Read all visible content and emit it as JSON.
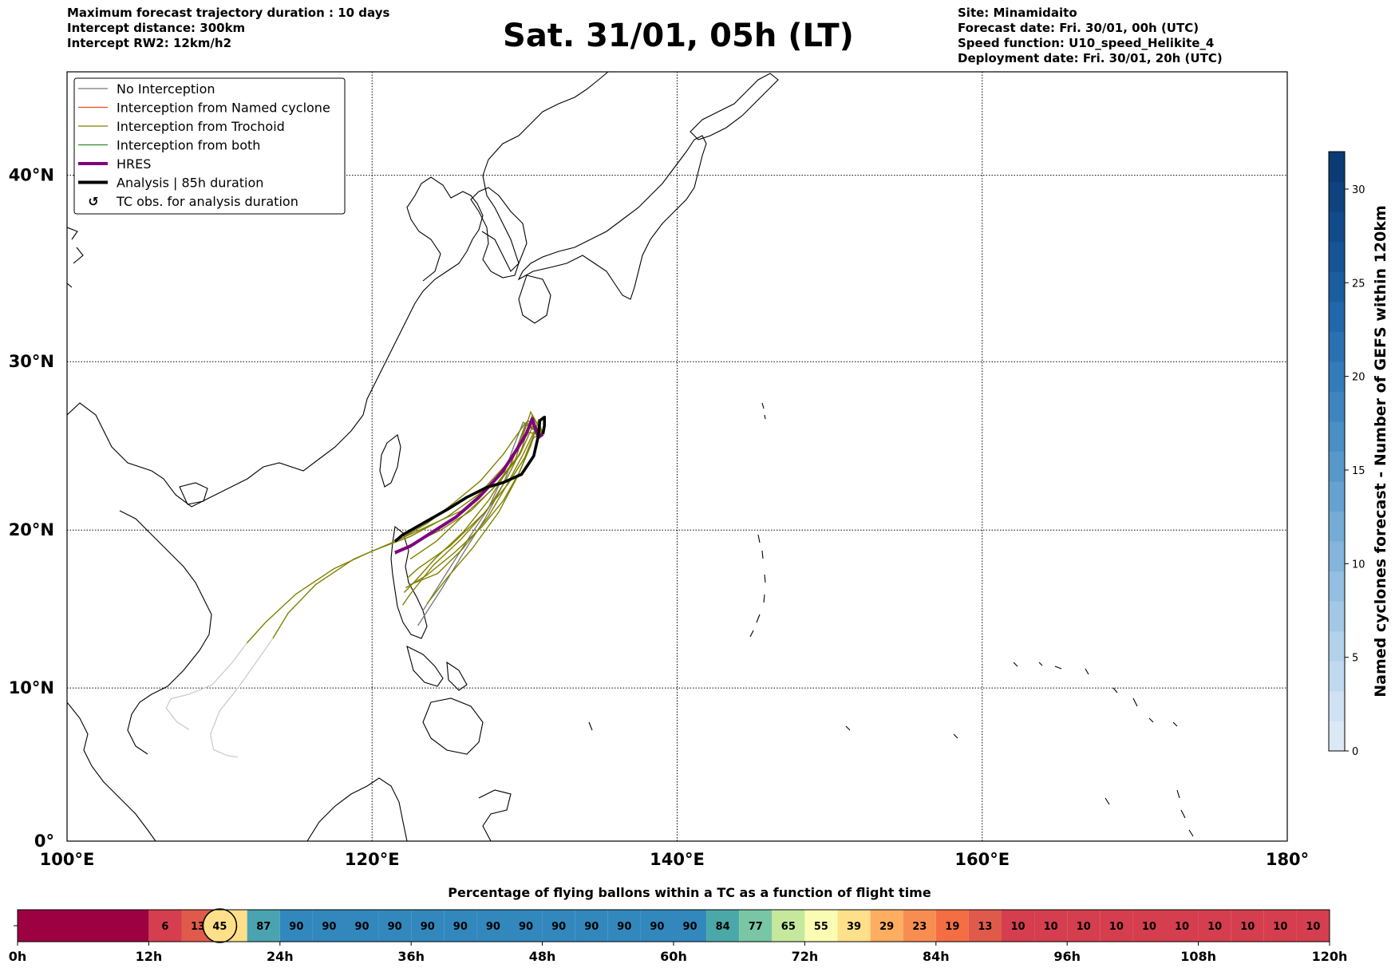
{
  "header_left": [
    "Maximum forecast trajectory duration : 10 days",
    "Intercept distance: 300km",
    "Intercept RW2: 12km/h2"
  ],
  "title": "Sat. 31/01, 05h (LT)",
  "header_right": [
    "Site: Minamidaito",
    "Forecast date: Fri. 30/01, 00h (UTC)",
    "Speed function: U10_speed_Helikite_4",
    "Deployment date: Fri. 30/01, 20h (UTC)"
  ],
  "map": {
    "lon_range": [
      100,
      180
    ],
    "lat_range": [
      0,
      45
    ],
    "lon_ticks": [
      "100°E",
      "120°E",
      "140°E",
      "160°E",
      "180°"
    ],
    "lat_ticks": [
      "0°",
      "10°N",
      "20°N",
      "30°N",
      "40°N"
    ],
    "grid": true
  },
  "legend": {
    "items": [
      {
        "label": "No Interception",
        "color": "#777777",
        "style": "thin"
      },
      {
        "label": "Interception from Named cyclone",
        "color": "#e8501e",
        "style": "thin"
      },
      {
        "label": "Interception from Trochoid",
        "color": "#808000",
        "style": "thin"
      },
      {
        "label": "Interception from both",
        "color": "#2e8b2e",
        "style": "thin"
      },
      {
        "label": "HRES",
        "color": "#800080",
        "style": "thick"
      },
      {
        "label": "Analysis | 85h duration",
        "color": "#000000",
        "style": "thick"
      },
      {
        "label": "TC obs. for analysis duration",
        "color": "#000000",
        "style": "symbol",
        "icon": "cyclone-icon"
      }
    ]
  },
  "colorbar": {
    "label": "Named cyclones forecast - Number of GEFS within 120km",
    "ticks": [
      "0",
      "5",
      "10",
      "15",
      "20",
      "25",
      "30"
    ],
    "range": [
      0,
      32
    ]
  },
  "trajectories": {
    "origin": [
      131.2,
      25.8
    ],
    "analysis": [
      [
        131.2,
        25.8
      ],
      [
        131.3,
        26.3
      ],
      [
        131.3,
        26.8
      ],
      [
        131.0,
        26.6
      ],
      [
        130.9,
        25.7
      ],
      [
        130.6,
        24.5
      ],
      [
        129.8,
        23.4
      ],
      [
        128.6,
        22.9
      ],
      [
        127.5,
        22.6
      ],
      [
        126.2,
        22.0
      ],
      [
        125.0,
        21.3
      ],
      [
        123.5,
        20.5
      ],
      [
        122.0,
        19.7
      ],
      [
        121.5,
        19.3
      ]
    ],
    "hres": [
      [
        131.2,
        25.8
      ],
      [
        130.9,
        25.6
      ],
      [
        130.5,
        26.7
      ],
      [
        130.1,
        25.8
      ],
      [
        129.5,
        24.9
      ],
      [
        128.5,
        23.5
      ],
      [
        127.0,
        22.0
      ],
      [
        125.5,
        20.8
      ],
      [
        124.0,
        19.9
      ],
      [
        122.5,
        19.0
      ],
      [
        121.5,
        18.6
      ]
    ],
    "trochoid": [
      [
        [
          131.2,
          25.8
        ],
        [
          130.6,
          26.4
        ],
        [
          129.7,
          24.6
        ],
        [
          128.4,
          23.0
        ],
        [
          126.5,
          21.2
        ],
        [
          124.5,
          20.0
        ],
        [
          122.3,
          19.0
        ],
        [
          121.5,
          18.5
        ]
      ],
      [
        [
          131.2,
          25.8
        ],
        [
          130.4,
          27.1
        ],
        [
          129.4,
          24.3
        ],
        [
          127.9,
          22.5
        ],
        [
          126.0,
          20.9
        ],
        [
          124.2,
          19.3
        ],
        [
          122.5,
          18.2
        ]
      ],
      [
        [
          131.2,
          25.8
        ],
        [
          130.8,
          26.2
        ],
        [
          130.0,
          24.4
        ],
        [
          128.9,
          22.8
        ],
        [
          127.3,
          21.0
        ],
        [
          125.1,
          19.0
        ],
        [
          123.0,
          17.6
        ],
        [
          122.3,
          17.0
        ]
      ],
      [
        [
          131.2,
          25.8
        ],
        [
          130.2,
          26.6
        ],
        [
          129.1,
          24.0
        ],
        [
          127.7,
          21.9
        ],
        [
          126.0,
          19.9
        ],
        [
          124.1,
          18.2
        ],
        [
          122.8,
          16.8
        ],
        [
          122.1,
          16.1
        ]
      ],
      [
        [
          131.2,
          25.8
        ],
        [
          130.5,
          26.9
        ],
        [
          129.8,
          24.9
        ],
        [
          128.8,
          23.1
        ],
        [
          127.6,
          21.3
        ],
        [
          125.8,
          19.4
        ],
        [
          124.0,
          17.8
        ],
        [
          122.5,
          16.0
        ],
        [
          122.0,
          15.3
        ]
      ],
      [
        [
          131.2,
          25.8
        ],
        [
          130.9,
          26.6
        ],
        [
          130.4,
          25.1
        ],
        [
          129.5,
          23.2
        ],
        [
          128.3,
          21.1
        ],
        [
          126.6,
          18.9
        ],
        [
          124.9,
          17.0
        ],
        [
          123.6,
          15.4
        ]
      ],
      [
        [
          131.2,
          25.8
        ],
        [
          130.7,
          26.1
        ],
        [
          129.9,
          24.6
        ],
        [
          128.8,
          22.7
        ],
        [
          127.6,
          20.8
        ],
        [
          125.9,
          18.8
        ],
        [
          124.3,
          17.3
        ],
        [
          122.5,
          16.6
        ]
      ],
      [
        [
          131.2,
          25.8
        ],
        [
          130.3,
          26.2
        ],
        [
          129.2,
          24.5
        ],
        [
          127.7,
          22.7
        ],
        [
          125.9,
          21.2
        ],
        [
          123.8,
          20.3
        ],
        [
          121.5,
          19.3
        ],
        [
          118.8,
          18.2
        ],
        [
          116.3,
          16.6
        ],
        [
          114.5,
          14.8
        ],
        [
          113.5,
          13.2
        ]
      ],
      [
        [
          131.2,
          25.8
        ],
        [
          130.1,
          25.9
        ],
        [
          128.8,
          24.0
        ],
        [
          127.0,
          22.2
        ],
        [
          124.9,
          20.8
        ],
        [
          122.5,
          19.6
        ],
        [
          120.0,
          18.7
        ],
        [
          117.5,
          17.6
        ],
        [
          115.0,
          16.0
        ],
        [
          113.0,
          14.2
        ],
        [
          111.8,
          12.9
        ]
      ],
      [
        [
          131.2,
          25.8
        ],
        [
          130.0,
          26.4
        ],
        [
          128.6,
          24.6
        ],
        [
          127.1,
          23.0
        ],
        [
          125.4,
          21.7
        ],
        [
          123.6,
          20.4
        ],
        [
          122.1,
          19.6
        ]
      ],
      [
        [
          131.2,
          25.8
        ],
        [
          130.6,
          25.6
        ],
        [
          129.7,
          23.6
        ],
        [
          128.6,
          21.8
        ],
        [
          127.2,
          20.2
        ],
        [
          125.4,
          18.6
        ],
        [
          123.6,
          17.2
        ],
        [
          122.2,
          16.4
        ]
      ]
    ],
    "no_interception": [
      [
        [
          131.2,
          25.8
        ],
        [
          129.9,
          26.5
        ],
        [
          129.3,
          25.1
        ],
        [
          128.6,
          23.3
        ],
        [
          127.6,
          21.3
        ],
        [
          126.2,
          19.3
        ],
        [
          124.8,
          17.2
        ],
        [
          123.3,
          14.9
        ]
      ],
      [
        [
          131.2,
          25.8
        ],
        [
          130.1,
          26.5
        ],
        [
          129.4,
          24.8
        ],
        [
          128.6,
          22.8
        ],
        [
          127.4,
          20.7
        ],
        [
          126.0,
          18.6
        ],
        [
          124.6,
          16.4
        ],
        [
          123.0,
          14.0
        ]
      ]
    ],
    "faded": [
      [
        [
          113.5,
          13.2
        ],
        [
          112.5,
          11.8
        ],
        [
          111.2,
          10.0
        ],
        [
          110.0,
          8.5
        ],
        [
          109.4,
          7.0
        ],
        [
          109.6,
          6.0
        ],
        [
          110.5,
          5.6
        ],
        [
          111.2,
          5.5
        ]
      ],
      [
        [
          111.8,
          12.9
        ],
        [
          110.8,
          11.6
        ],
        [
          109.5,
          10.2
        ],
        [
          108.0,
          9.6
        ],
        [
          106.8,
          9.3
        ],
        [
          106.5,
          8.7
        ],
        [
          107.2,
          7.8
        ],
        [
          108.0,
          7.3
        ]
      ]
    ]
  },
  "flight_panel": {
    "title": "Percentage of flying ballons within a TC as a function of flight time",
    "tick_labels": [
      "0h",
      "12h",
      "24h",
      "36h",
      "48h",
      "60h",
      "72h",
      "84h",
      "96h",
      "108h",
      "120h"
    ],
    "max_hours": 120,
    "current_hour": 20,
    "cells": [
      {
        "h0": 0,
        "h1": 12,
        "value": "",
        "color": "#9e0142"
      },
      {
        "h0": 12,
        "h1": 15,
        "value": "6",
        "color": "#d53e4f"
      },
      {
        "h0": 15,
        "h1": 18,
        "value": "13",
        "color": "#e05a4b"
      },
      {
        "h0": 18,
        "h1": 21,
        "value": "45",
        "color": "#fee08b"
      },
      {
        "h0": 21,
        "h1": 24,
        "value": "87",
        "color": "#4aa3b0"
      },
      {
        "h0": 24,
        "h1": 27,
        "value": "90",
        "color": "#3288bd"
      },
      {
        "h0": 27,
        "h1": 30,
        "value": "90",
        "color": "#3288bd"
      },
      {
        "h0": 30,
        "h1": 33,
        "value": "90",
        "color": "#3288bd"
      },
      {
        "h0": 33,
        "h1": 36,
        "value": "90",
        "color": "#3288bd"
      },
      {
        "h0": 36,
        "h1": 39,
        "value": "90",
        "color": "#3288bd"
      },
      {
        "h0": 39,
        "h1": 42,
        "value": "90",
        "color": "#3288bd"
      },
      {
        "h0": 42,
        "h1": 45,
        "value": "90",
        "color": "#3288bd"
      },
      {
        "h0": 45,
        "h1": 48,
        "value": "90",
        "color": "#3288bd"
      },
      {
        "h0": 48,
        "h1": 51,
        "value": "90",
        "color": "#3288bd"
      },
      {
        "h0": 51,
        "h1": 54,
        "value": "90",
        "color": "#3288bd"
      },
      {
        "h0": 54,
        "h1": 57,
        "value": "90",
        "color": "#3288bd"
      },
      {
        "h0": 57,
        "h1": 60,
        "value": "90",
        "color": "#3288bd"
      },
      {
        "h0": 60,
        "h1": 63,
        "value": "90",
        "color": "#3288bd"
      },
      {
        "h0": 63,
        "h1": 66,
        "value": "84",
        "color": "#4aa9a8"
      },
      {
        "h0": 66,
        "h1": 69,
        "value": "77",
        "color": "#78c6a4"
      },
      {
        "h0": 69,
        "h1": 72,
        "value": "65",
        "color": "#c5e89c"
      },
      {
        "h0": 72,
        "h1": 75,
        "value": "55",
        "color": "#fbfcb4"
      },
      {
        "h0": 75,
        "h1": 78,
        "value": "39",
        "color": "#fee08b"
      },
      {
        "h0": 78,
        "h1": 81,
        "value": "29",
        "color": "#fdae61"
      },
      {
        "h0": 81,
        "h1": 84,
        "value": "23",
        "color": "#f88d52"
      },
      {
        "h0": 84,
        "h1": 87,
        "value": "19",
        "color": "#f46d43"
      },
      {
        "h0": 87,
        "h1": 90,
        "value": "13",
        "color": "#e05a4b"
      },
      {
        "h0": 90,
        "h1": 93,
        "value": "10",
        "color": "#d53e4f"
      },
      {
        "h0": 93,
        "h1": 96,
        "value": "10",
        "color": "#d53e4f"
      },
      {
        "h0": 96,
        "h1": 99,
        "value": "10",
        "color": "#d53e4f"
      },
      {
        "h0": 99,
        "h1": 102,
        "value": "10",
        "color": "#d53e4f"
      },
      {
        "h0": 102,
        "h1": 105,
        "value": "10",
        "color": "#d53e4f"
      },
      {
        "h0": 105,
        "h1": 108,
        "value": "10",
        "color": "#d53e4f"
      },
      {
        "h0": 108,
        "h1": 111,
        "value": "10",
        "color": "#d53e4f"
      },
      {
        "h0": 111,
        "h1": 114,
        "value": "10",
        "color": "#d53e4f"
      },
      {
        "h0": 114,
        "h1": 117,
        "value": "10",
        "color": "#d53e4f"
      },
      {
        "h0": 117,
        "h1": 120,
        "value": "10",
        "color": "#d53e4f"
      }
    ]
  }
}
